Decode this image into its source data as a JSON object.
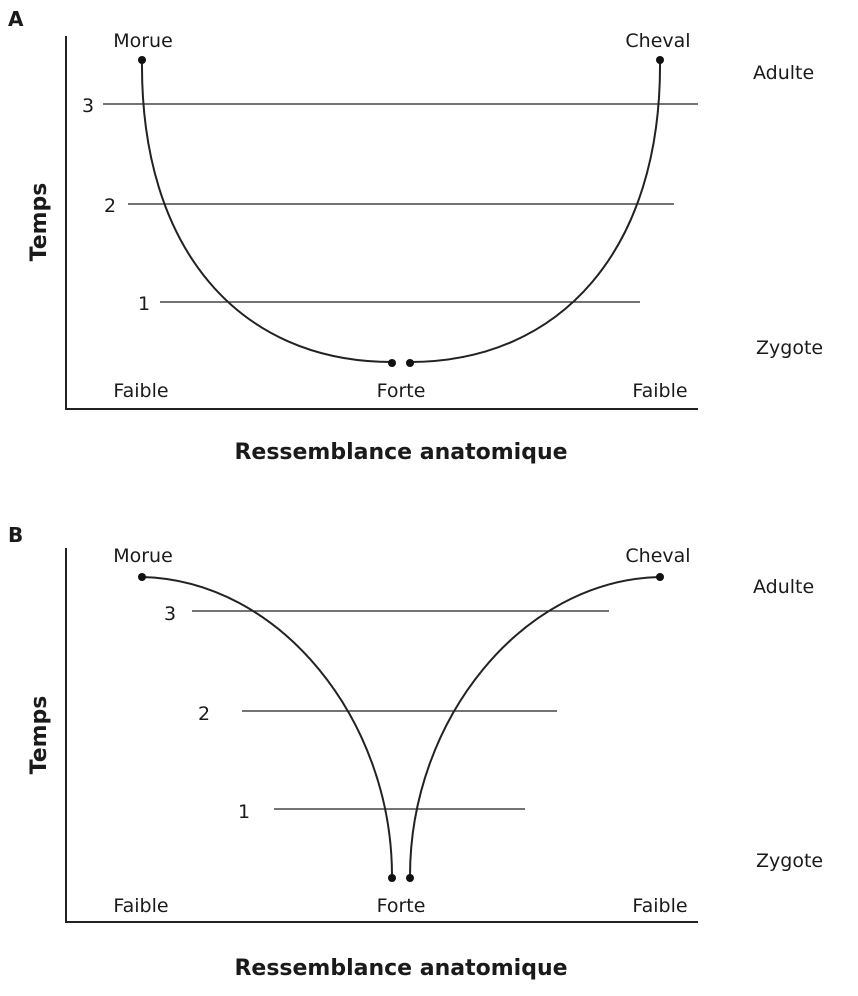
{
  "panels": [
    {
      "letter": "A",
      "y_title": "Temps",
      "x_title": "Ressemblance anatomique",
      "species_left": "Morue",
      "species_right": "Cheval",
      "stage_top": "Adulte",
      "stage_bottom": "Zygote",
      "x_left": "Faible",
      "x_center": "Forte",
      "x_right": "Faible",
      "levels": [
        "1",
        "2",
        "3"
      ]
    },
    {
      "letter": "B",
      "y_title": "Temps",
      "x_title": "Ressemblance anatomique",
      "species_left": "Morue",
      "species_right": "Cheval",
      "stage_top": "Adulte",
      "stage_bottom": "Zygote",
      "x_left": "Faible",
      "x_center": "Forte",
      "x_right": "Faible",
      "levels": [
        "1",
        "2",
        "3"
      ]
    }
  ]
}
